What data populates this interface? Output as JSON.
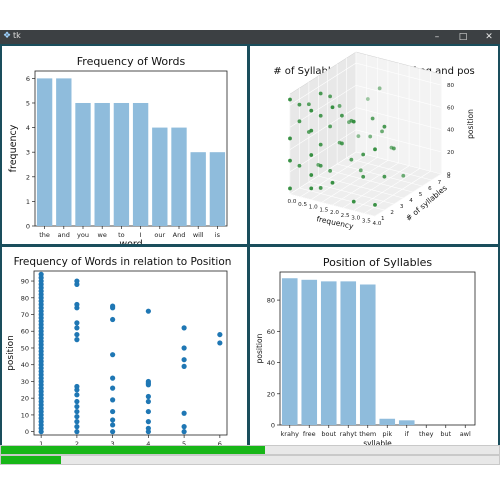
{
  "window": {
    "icon": "python-feather-icon",
    "title": "tk",
    "controls": {
      "minimize": "–",
      "maximize": "□",
      "close": "✕"
    }
  },
  "progress": [
    {
      "name": "progress-bar-1",
      "value": 0.53
    },
    {
      "name": "progress-bar-2",
      "value": 0.12
    }
  ],
  "chart_data": [
    {
      "type": "bar",
      "title": "Frequency of Words",
      "xlabel": "word",
      "ylabel": "frequency",
      "categories": [
        "the",
        "and",
        "you",
        "we",
        "to",
        "I",
        "our",
        "And",
        "will",
        "is"
      ],
      "values": [
        6,
        6,
        5,
        5,
        5,
        5,
        4,
        4,
        3,
        3
      ],
      "ylim": [
        0,
        6.3
      ],
      "yticks": [
        0,
        1,
        2,
        3,
        4,
        5,
        6
      ],
      "color": "#8fbcdc"
    },
    {
      "type": "scatter",
      "projection": "3d",
      "title": "# of Syllables in relation to freq and pos",
      "xlabel": "frequency",
      "ylabel": "# of syllables",
      "zlabel": "position",
      "xticks": [
        "0.0",
        "0.5",
        "1.0",
        "1.5",
        "2.0",
        "2.5",
        "3.0",
        "3.5",
        "4.0"
      ],
      "yticks": [
        "1",
        "2",
        "3",
        "4",
        "5",
        "6",
        "7",
        "8"
      ],
      "zticks": [
        "0",
        "20",
        "40",
        "60",
        "80"
      ],
      "xlim": [
        0,
        4
      ],
      "ylim": [
        1,
        8
      ],
      "zlim": [
        0,
        90
      ],
      "color": "#2e8b3a",
      "points": [
        [
          0,
          1,
          5
        ],
        [
          0,
          1,
          30
        ],
        [
          0,
          2,
          60
        ],
        [
          0,
          1,
          85
        ],
        [
          0,
          2,
          20
        ],
        [
          0,
          3,
          45
        ],
        [
          0,
          2,
          75
        ],
        [
          0,
          1,
          50
        ],
        [
          0,
          4,
          10
        ],
        [
          0,
          3,
          70
        ],
        [
          1,
          1,
          10
        ],
        [
          1,
          1,
          40
        ],
        [
          1,
          2,
          70
        ],
        [
          1,
          2,
          25
        ],
        [
          1,
          3,
          55
        ],
        [
          1,
          1,
          80
        ],
        [
          1,
          4,
          35
        ],
        [
          1,
          2,
          90
        ],
        [
          1,
          3,
          15
        ],
        [
          1,
          1,
          62
        ],
        [
          1,
          5,
          48
        ],
        [
          1,
          2,
          5
        ],
        [
          1,
          3,
          82
        ],
        [
          1,
          6,
          30
        ],
        [
          1,
          4,
          68
        ],
        [
          1,
          2,
          44
        ],
        [
          1,
          1,
          22
        ],
        [
          1,
          7,
          58
        ],
        [
          2,
          1,
          20
        ],
        [
          2,
          2,
          75
        ],
        [
          2,
          2,
          50
        ],
        [
          2,
          3,
          30
        ],
        [
          2,
          1,
          88
        ],
        [
          2,
          4,
          15
        ],
        [
          2,
          3,
          65
        ],
        [
          2,
          5,
          40
        ],
        [
          2,
          6,
          78
        ],
        [
          3,
          1,
          8
        ],
        [
          3,
          2,
          45
        ],
        [
          3,
          3,
          72
        ],
        [
          3,
          2,
          25
        ],
        [
          3,
          4,
          55
        ],
        [
          3,
          1,
          80
        ],
        [
          3,
          5,
          35
        ],
        [
          4,
          1,
          60
        ],
        [
          4,
          2,
          30
        ],
        [
          4,
          3,
          50
        ],
        [
          4,
          4,
          20
        ],
        [
          4,
          2,
          75
        ],
        [
          4,
          1,
          10
        ]
      ]
    },
    {
      "type": "scatter",
      "title": "Frequency of Words in relation to Position",
      "xlabel": "frequency",
      "ylabel": "position",
      "xticks": [
        1,
        2,
        3,
        4,
        5,
        6
      ],
      "yticks": [
        0,
        10,
        20,
        30,
        40,
        50,
        60,
        70,
        80,
        90
      ],
      "xlim": [
        0.8,
        6.2
      ],
      "ylim": [
        -2,
        96
      ],
      "color": "#1f77b4",
      "x": [
        1,
        1,
        1,
        1,
        1,
        1,
        1,
        1,
        1,
        1,
        1,
        1,
        1,
        1,
        1,
        1,
        1,
        1,
        1,
        1,
        1,
        1,
        1,
        1,
        1,
        1,
        1,
        1,
        1,
        1,
        1,
        1,
        1,
        1,
        1,
        1,
        1,
        1,
        1,
        1,
        1,
        1,
        1,
        1,
        1,
        1,
        1,
        1,
        2,
        2,
        2,
        2,
        2,
        2,
        2,
        2,
        2,
        2,
        2,
        2,
        2,
        2,
        2,
        2,
        2,
        2,
        3,
        3,
        3,
        3,
        3,
        3,
        3,
        3,
        3,
        3,
        3,
        4,
        4,
        4,
        4,
        4,
        4,
        4,
        4,
        4,
        4,
        5,
        5,
        5,
        5,
        5,
        5,
        5,
        6,
        6
      ],
      "y": [
        0,
        2,
        4,
        6,
        8,
        10,
        12,
        14,
        16,
        18,
        20,
        22,
        24,
        26,
        28,
        30,
        32,
        34,
        36,
        38,
        40,
        42,
        44,
        46,
        48,
        50,
        52,
        54,
        56,
        58,
        60,
        62,
        64,
        66,
        68,
        70,
        72,
        74,
        76,
        78,
        80,
        82,
        84,
        86,
        88,
        90,
        92,
        94,
        0,
        3,
        6,
        9,
        12,
        15,
        18,
        22,
        25,
        27,
        55,
        58,
        62,
        65,
        74,
        76,
        88,
        90,
        0,
        4,
        7,
        12,
        19,
        26,
        32,
        46,
        67,
        74,
        75,
        0,
        2,
        6,
        12,
        18,
        21,
        28,
        29,
        30,
        72,
        0,
        3,
        11,
        39,
        43,
        50,
        62,
        53,
        58
      ]
    },
    {
      "type": "bar",
      "title": "Position of Syllables",
      "xlabel": "syllable",
      "ylabel": "position",
      "categories": [
        "krahy",
        "free",
        "bout",
        "rahyt",
        "them",
        "pik",
        "if",
        "they",
        "but",
        "awl"
      ],
      "values": [
        94,
        93,
        92,
        92,
        90,
        4,
        3,
        0,
        0,
        0
      ],
      "ylim": [
        0,
        98
      ],
      "yticks": [
        0,
        20,
        40,
        60,
        80
      ],
      "color": "#8fbcdc"
    }
  ]
}
